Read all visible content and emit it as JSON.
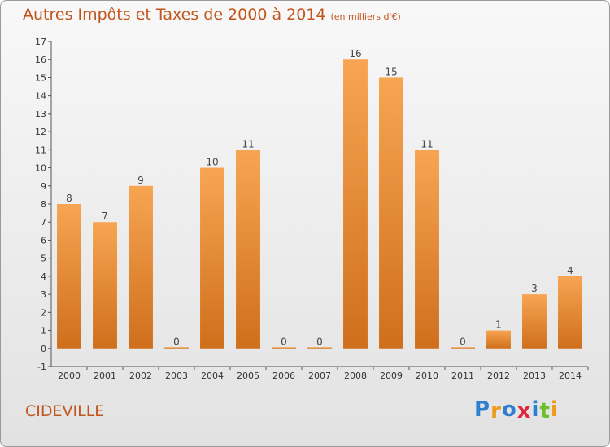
{
  "header": {
    "title": "Autres Impôts et Taxes de 2000 à 2014",
    "subtitle": "(en milliers d'€)"
  },
  "footer": {
    "commune": "CIDEVILLE",
    "logo_text": "Proxiti",
    "logo_letters": [
      "P",
      "r",
      "o",
      "x",
      "i",
      "t",
      "i"
    ],
    "logo_colors": [
      "#2f7fd0",
      "#f09a1a",
      "#2f7fd0",
      "#e0263a",
      "#2f7fd0",
      "#6cc02a",
      "#f09a1a"
    ]
  },
  "chart_data": {
    "type": "bar",
    "title": "Autres Impôts et Taxes de 2000 à 2014",
    "subtitle": "(en milliers d'€)",
    "categories": [
      "2000",
      "2001",
      "2002",
      "2003",
      "2004",
      "2005",
      "2006",
      "2007",
      "2008",
      "2009",
      "2010",
      "2011",
      "2012",
      "2013",
      "2014"
    ],
    "values": [
      8,
      7,
      9,
      0,
      10,
      11,
      0,
      0,
      16,
      15,
      11,
      0,
      1,
      3,
      4
    ],
    "ylim": [
      -1,
      17
    ],
    "yticks": [
      -1,
      0,
      1,
      2,
      3,
      4,
      5,
      6,
      7,
      8,
      9,
      10,
      11,
      12,
      13,
      14,
      15,
      16,
      17
    ],
    "grid": false,
    "bar_color": "#f0983f"
  }
}
